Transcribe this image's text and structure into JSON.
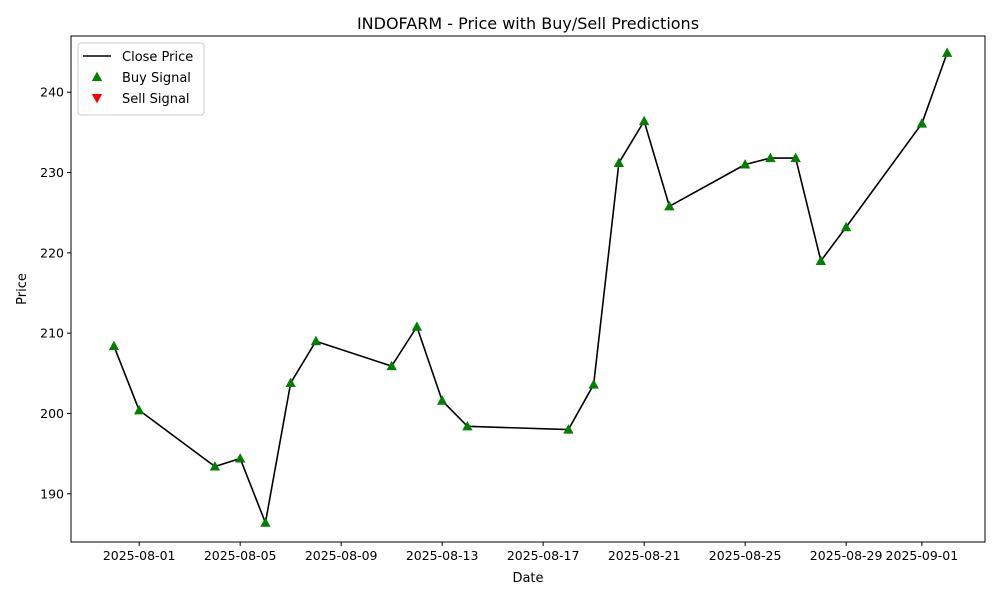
{
  "chart_data": {
    "type": "line",
    "title": "INDOFARM - Price with Buy/Sell Predictions",
    "xlabel": "Date",
    "ylabel": "Price",
    "xlim": [
      "2025-07-29",
      "2025-09-03"
    ],
    "ylim": [
      184,
      247
    ],
    "x_ticks": [
      "2025-08-01",
      "2025-08-05",
      "2025-08-09",
      "2025-08-13",
      "2025-08-17",
      "2025-08-21",
      "2025-08-25",
      "2025-08-29",
      "2025-09-01"
    ],
    "y_ticks": [
      190,
      200,
      210,
      220,
      230,
      240
    ],
    "grid": false,
    "legend_position": "top-left",
    "series": [
      {
        "name": "Close Price",
        "kind": "line",
        "color": "#000000",
        "points": [
          [
            "2025-07-31",
            208.4
          ],
          [
            "2025-08-01",
            200.4
          ],
          [
            "2025-08-04",
            193.4
          ],
          [
            "2025-08-05",
            194.4
          ],
          [
            "2025-08-06",
            186.4
          ],
          [
            "2025-08-07",
            203.8
          ],
          [
            "2025-08-08",
            209.0
          ],
          [
            "2025-08-11",
            205.9
          ],
          [
            "2025-08-12",
            210.8
          ],
          [
            "2025-08-13",
            201.6
          ],
          [
            "2025-08-14",
            198.4
          ],
          [
            "2025-08-18",
            198.0
          ],
          [
            "2025-08-19",
            203.6
          ],
          [
            "2025-08-20",
            231.2
          ],
          [
            "2025-08-21",
            236.4
          ],
          [
            "2025-08-22",
            225.8
          ],
          [
            "2025-08-25",
            231.0
          ],
          [
            "2025-08-26",
            231.8
          ],
          [
            "2025-08-27",
            231.8
          ],
          [
            "2025-08-28",
            219.0
          ],
          [
            "2025-08-29",
            223.2
          ],
          [
            "2025-09-01",
            236.1
          ],
          [
            "2025-09-02",
            244.9
          ]
        ]
      },
      {
        "name": "Buy Signal",
        "kind": "marker-up",
        "color": "#008000",
        "points": [
          [
            "2025-07-31",
            208.4
          ],
          [
            "2025-08-01",
            200.4
          ],
          [
            "2025-08-04",
            193.4
          ],
          [
            "2025-08-05",
            194.4
          ],
          [
            "2025-08-06",
            186.4
          ],
          [
            "2025-08-07",
            203.8
          ],
          [
            "2025-08-08",
            209.0
          ],
          [
            "2025-08-11",
            205.9
          ],
          [
            "2025-08-12",
            210.8
          ],
          [
            "2025-08-13",
            201.6
          ],
          [
            "2025-08-14",
            198.4
          ],
          [
            "2025-08-18",
            198.0
          ],
          [
            "2025-08-19",
            203.6
          ],
          [
            "2025-08-20",
            231.2
          ],
          [
            "2025-08-21",
            236.4
          ],
          [
            "2025-08-22",
            225.8
          ],
          [
            "2025-08-25",
            231.0
          ],
          [
            "2025-08-26",
            231.8
          ],
          [
            "2025-08-27",
            231.8
          ],
          [
            "2025-08-28",
            219.0
          ],
          [
            "2025-08-29",
            223.2
          ],
          [
            "2025-09-01",
            236.1
          ],
          [
            "2025-09-02",
            244.9
          ]
        ]
      },
      {
        "name": "Sell Signal",
        "kind": "marker-down",
        "color": "#ff0000",
        "points": []
      }
    ]
  }
}
